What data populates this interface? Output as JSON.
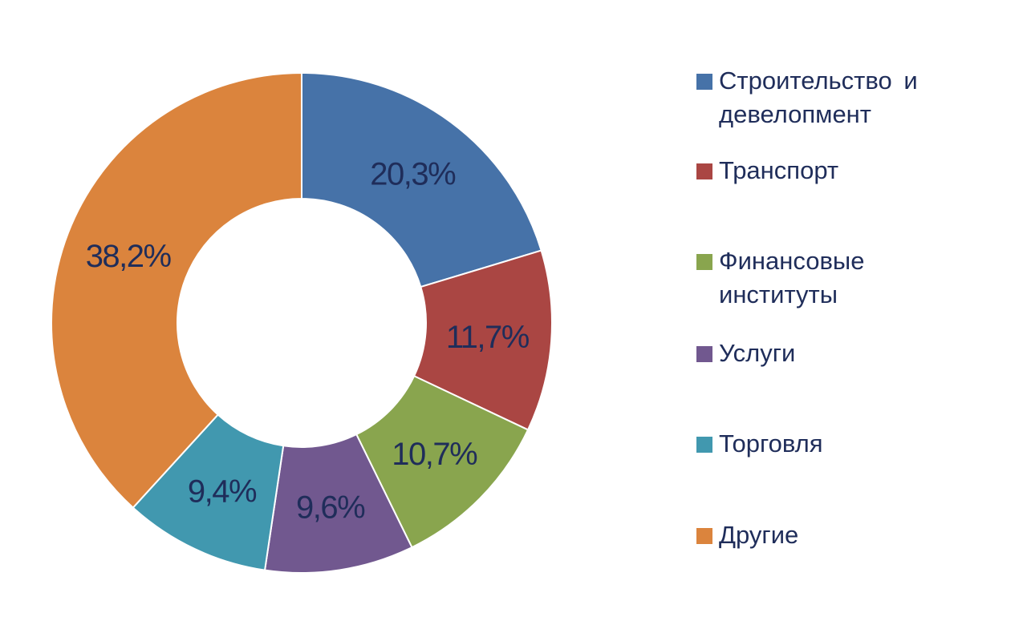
{
  "chart_data": {
    "type": "pie",
    "subtype": "donut",
    "slices": [
      {
        "label": "Строительство и девелопмент",
        "value": 20.3,
        "display": "20,3%",
        "color": "#4672a8"
      },
      {
        "label": "Транспорт",
        "value": 11.7,
        "display": "11,7%",
        "color": "#aa4643"
      },
      {
        "label": "Финансовые институты",
        "value": 10.7,
        "display": "10,7%",
        "color": "#89a54e"
      },
      {
        "label": "Услуги",
        "value": 9.6,
        "display": "9,6%",
        "color": "#71588f"
      },
      {
        "label": "Торговля",
        "value": 9.4,
        "display": "9,4%",
        "color": "#4198af"
      },
      {
        "label": "Другие",
        "value": 38.2,
        "display": "38,2%",
        "color": "#db843d"
      }
    ],
    "legend_position": "right",
    "start_angle": "top, clockwise"
  }
}
